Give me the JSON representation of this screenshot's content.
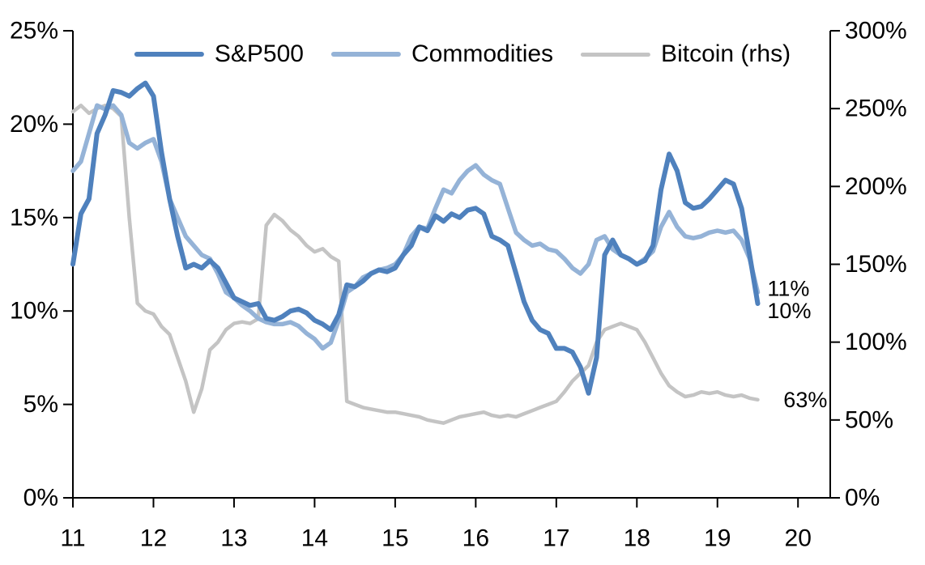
{
  "chart_data": {
    "type": "line",
    "title": "",
    "grid": false,
    "legend_position": "top-center",
    "x": [
      11,
      11.1,
      11.2,
      11.3,
      11.4,
      11.5,
      11.6,
      11.7,
      11.8,
      11.9,
      12,
      12.1,
      12.2,
      12.3,
      12.4,
      12.5,
      12.6,
      12.7,
      12.8,
      12.9,
      13,
      13.1,
      13.2,
      13.3,
      13.4,
      13.5,
      13.6,
      13.7,
      13.8,
      13.9,
      14,
      14.1,
      14.2,
      14.3,
      14.4,
      14.5,
      14.6,
      14.7,
      14.8,
      14.9,
      15,
      15.1,
      15.2,
      15.3,
      15.4,
      15.5,
      15.6,
      15.7,
      15.8,
      15.9,
      16,
      16.1,
      16.2,
      16.3,
      16.4,
      16.5,
      16.6,
      16.7,
      16.8,
      16.9,
      17,
      17.1,
      17.2,
      17.3,
      17.4,
      17.5,
      17.6,
      17.7,
      17.8,
      17.9,
      18,
      18.1,
      18.2,
      18.3,
      18.4,
      18.5,
      18.6,
      18.7,
      18.8,
      18.9,
      19,
      19.1,
      19.2,
      19.3,
      19.4,
      19.5
    ],
    "series": [
      {
        "name": "S&P500",
        "axis": "left",
        "color": "#4f81bd",
        "width": 6,
        "values": [
          12.5,
          15.2,
          16.0,
          19.5,
          20.5,
          21.8,
          21.7,
          21.5,
          21.9,
          22.2,
          21.5,
          18.5,
          16.0,
          14.0,
          12.3,
          12.5,
          12.3,
          12.7,
          12.3,
          11.5,
          10.7,
          10.5,
          10.3,
          10.4,
          9.6,
          9.5,
          9.7,
          10.0,
          10.1,
          9.9,
          9.5,
          9.3,
          9.0,
          9.8,
          11.4,
          11.3,
          11.6,
          12.0,
          12.2,
          12.1,
          12.3,
          13.0,
          13.5,
          14.5,
          14.3,
          15.1,
          14.8,
          15.2,
          15.0,
          15.4,
          15.5,
          15.2,
          14.0,
          13.8,
          13.5,
          12.0,
          10.5,
          9.5,
          9.0,
          8.8,
          8.0,
          8.0,
          7.8,
          7.0,
          5.6,
          7.5,
          13.0,
          13.8,
          13.0,
          12.8,
          12.5,
          12.7,
          13.5,
          16.5,
          18.4,
          17.5,
          15.8,
          15.5,
          15.6,
          16.0,
          16.5,
          17.0,
          16.8,
          15.5,
          13.0,
          10.4
        ]
      },
      {
        "name": "Commodities",
        "axis": "left",
        "color": "#95b3d7",
        "width": 5.5,
        "values": [
          17.5,
          18.0,
          19.5,
          21.0,
          20.8,
          21.0,
          20.5,
          19.0,
          18.7,
          19.0,
          19.2,
          18.0,
          16.0,
          15.0,
          14.0,
          13.5,
          13.0,
          12.8,
          12.0,
          11.0,
          10.7,
          10.3,
          10.0,
          9.6,
          9.4,
          9.3,
          9.3,
          9.4,
          9.2,
          8.8,
          8.5,
          8.0,
          8.3,
          9.5,
          11.0,
          11.3,
          11.8,
          12.0,
          12.2,
          12.3,
          12.5,
          13.0,
          14.0,
          14.5,
          14.4,
          15.5,
          16.5,
          16.3,
          17.0,
          17.5,
          17.8,
          17.3,
          17.0,
          16.8,
          15.5,
          14.2,
          13.8,
          13.5,
          13.6,
          13.3,
          13.2,
          12.8,
          12.3,
          12.0,
          12.5,
          13.8,
          14.0,
          13.3,
          13.0,
          12.8,
          12.5,
          12.8,
          13.2,
          14.5,
          15.3,
          14.5,
          14.0,
          13.9,
          14.0,
          14.2,
          14.3,
          14.2,
          14.3,
          13.8,
          12.8,
          11.0
        ]
      },
      {
        "name": "Bitcoin (rhs)",
        "axis": "right",
        "color": "#c4c4c4",
        "width": 4.5,
        "values": [
          248,
          252,
          247,
          250,
          252,
          250,
          245,
          180,
          125,
          120,
          118,
          110,
          105,
          90,
          75,
          55,
          70,
          95,
          100,
          108,
          112,
          113,
          112,
          115,
          175,
          182,
          178,
          172,
          168,
          162,
          158,
          160,
          155,
          152,
          62,
          60,
          58,
          57,
          56,
          55,
          55,
          54,
          53,
          52,
          50,
          49,
          48,
          50,
          52,
          53,
          54,
          55,
          53,
          52,
          53,
          52,
          54,
          56,
          58,
          60,
          62,
          68,
          75,
          80,
          85,
          100,
          108,
          110,
          112,
          110,
          108,
          100,
          90,
          80,
          72,
          68,
          65,
          66,
          68,
          67,
          68,
          66,
          65,
          66,
          64,
          63
        ]
      }
    ],
    "axes": {
      "left": {
        "range": [
          0,
          25
        ],
        "tick_values": [
          0,
          5,
          10,
          15,
          20,
          25
        ],
        "tick_labels": [
          "0%",
          "5%",
          "10%",
          "15%",
          "20%",
          "25%"
        ]
      },
      "right": {
        "range": [
          0,
          300
        ],
        "tick_values": [
          0,
          50,
          100,
          150,
          200,
          250,
          300
        ],
        "tick_labels": [
          "0%",
          "50%",
          "100%",
          "150%",
          "200%",
          "250%",
          "300%"
        ]
      },
      "x": {
        "range": [
          11,
          20.4
        ],
        "tick_values": [
          11,
          12,
          13,
          14,
          15,
          16,
          17,
          18,
          19,
          20
        ],
        "tick_labels": [
          "11",
          "12",
          "13",
          "14",
          "15",
          "16",
          "17",
          "18",
          "19",
          "20"
        ]
      }
    },
    "annotations": [
      {
        "text": "11%",
        "year": 19.62,
        "axis": "left",
        "value": 11.2
      },
      {
        "text": "10%",
        "year": 19.62,
        "axis": "left",
        "value": 10.0
      },
      {
        "text": "63%",
        "year": 19.82,
        "axis": "right",
        "value": 63
      }
    ],
    "colors": {
      "axis": "#000000",
      "text": "#000000",
      "background": "#ffffff"
    }
  }
}
